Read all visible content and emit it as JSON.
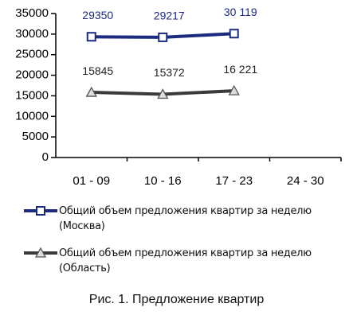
{
  "chart_data": {
    "type": "line",
    "caption": "Рис. 1. Предложение квартир",
    "categories": [
      "01 - 09",
      "10 - 16",
      "17 - 23",
      "24 - 30"
    ],
    "series": [
      {
        "name": "Общий объем предложения квартир за неделю (Москва)",
        "color": "#1c2a80",
        "marker": "square",
        "values": [
          29350,
          29217,
          30119,
          null
        ],
        "value_labels": [
          "29350",
          "29217",
          "30 119",
          null
        ]
      },
      {
        "name": "Общий объем предложения квартир за неделю (Область)",
        "color": "#3a3a3a",
        "marker": "triangle",
        "values": [
          15845,
          15372,
          16221,
          null
        ],
        "value_labels": [
          "15845",
          "15372",
          "16 221",
          null
        ]
      }
    ],
    "ylim": [
      0,
      35000
    ],
    "yticks": [
      0,
      5000,
      10000,
      15000,
      20000,
      25000,
      30000,
      35000
    ]
  }
}
